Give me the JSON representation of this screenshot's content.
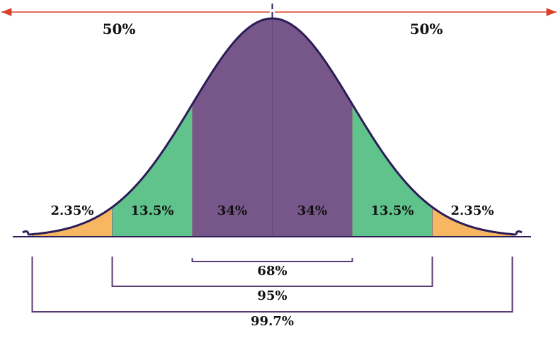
{
  "colors": {
    "center": "#77568a",
    "inner": "#5fc38b",
    "tail": "#f6b662",
    "outline": "#2c1d57",
    "arrow": "#d9402b",
    "bracket": "#5b3b73",
    "text": "#111111"
  },
  "top_labels": {
    "left_half": "50%",
    "right_half": "50%"
  },
  "bands": [
    {
      "label": "2.35%",
      "from": -3,
      "to": -2,
      "color_key": "tail"
    },
    {
      "label": "13.5%",
      "from": -2,
      "to": -1,
      "color_key": "inner"
    },
    {
      "label": "34%",
      "from": -1,
      "to": 0,
      "color_key": "center"
    },
    {
      "label": "34%",
      "from": 0,
      "to": 1,
      "color_key": "center"
    },
    {
      "label": "13.5%",
      "from": 1,
      "to": 2,
      "color_key": "inner"
    },
    {
      "label": "2.35%",
      "from": 2,
      "to": 3,
      "color_key": "tail"
    }
  ],
  "ranges": [
    {
      "label": "68%",
      "from": -1,
      "to": 1
    },
    {
      "label": "95%",
      "from": -2,
      "to": 2
    },
    {
      "label": "99.7%",
      "from": -3,
      "to": 3
    }
  ]
}
